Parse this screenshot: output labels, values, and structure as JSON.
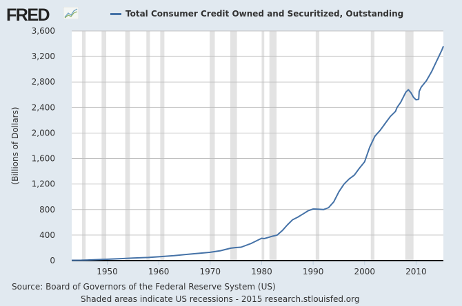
{
  "header": {
    "logo_text": "FRED",
    "logo_icon": "line-chart-icon"
  },
  "footer": {
    "source": "Source: Board of Governors of the Federal Reserve System (US)",
    "note": "Shaded areas indicate US recessions - 2015 research.stlouisfed.org"
  },
  "colors": {
    "background": "#e1e9f0",
    "series": "#4572a7",
    "recession": "#e3e3e3",
    "grid": "#c0c0c0"
  },
  "chart_data": {
    "type": "line",
    "title": "",
    "legend": [
      "Total Consumer Credit Owned and Securitized, Outstanding"
    ],
    "legend_position": "top",
    "xlabel": "",
    "ylabel": "(Billions of Dollars)",
    "xlim": [
      1943.1,
      2015.3
    ],
    "ylim": [
      0,
      3600
    ],
    "grid": true,
    "x_ticks": [
      1950,
      1960,
      1970,
      1980,
      1990,
      2000,
      2010
    ],
    "x_tick_labels": [
      "1950",
      "1960",
      "1970",
      "1980",
      "1990",
      "2000",
      "2010"
    ],
    "y_ticks": [
      0,
      400,
      800,
      1200,
      1600,
      2000,
      2400,
      2800,
      3200,
      3600
    ],
    "y_tick_labels": [
      "0",
      "400",
      "800",
      "1,200",
      "1,600",
      "2,000",
      "2,400",
      "2,800",
      "3,200",
      "3,600"
    ],
    "recessions": [
      [
        1945.1,
        1945.8
      ],
      [
        1948.9,
        1949.8
      ],
      [
        1953.5,
        1954.4
      ],
      [
        1957.6,
        1958.3
      ],
      [
        1960.3,
        1961.1
      ],
      [
        1969.9,
        1970.9
      ],
      [
        1973.9,
        1975.2
      ],
      [
        1980.0,
        1980.5
      ],
      [
        1981.5,
        1982.9
      ],
      [
        1990.5,
        1991.2
      ],
      [
        2001.2,
        2001.9
      ],
      [
        2007.9,
        2009.5
      ]
    ],
    "series": [
      {
        "name": "Total Consumer Credit Owned and Securitized, Outstanding",
        "x": [
          1943.1,
          1945,
          1947,
          1950,
          1953,
          1955,
          1958,
          1960,
          1963,
          1965,
          1968,
          1970,
          1972,
          1974,
          1975,
          1976,
          1978,
          1980,
          1980.5,
          1982,
          1983,
          1984,
          1985,
          1986,
          1987,
          1988,
          1989,
          1990,
          1991,
          1992,
          1993,
          1994,
          1995,
          1996,
          1997,
          1998,
          1999,
          2000,
          2001,
          2002,
          2003,
          2004,
          2005,
          2006,
          2006.3,
          2007,
          2008,
          2008.5,
          2009,
          2009.5,
          2010,
          2010.5,
          2010.6,
          2011,
          2012,
          2013,
          2014,
          2015,
          2015.3
        ],
        "y": [
          5,
          6,
          12,
          22,
          32,
          40,
          50,
          60,
          78,
          95,
          115,
          130,
          155,
          195,
          205,
          210,
          270,
          350,
          345,
          380,
          400,
          470,
          560,
          640,
          680,
          730,
          780,
          810,
          805,
          800,
          830,
          920,
          1080,
          1200,
          1280,
          1340,
          1450,
          1550,
          1780,
          1950,
          2040,
          2150,
          2260,
          2340,
          2400,
          2480,
          2640,
          2680,
          2630,
          2560,
          2520,
          2530,
          2650,
          2720,
          2820,
          2960,
          3130,
          3300,
          3360
        ]
      }
    ]
  }
}
